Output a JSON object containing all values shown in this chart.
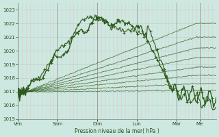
{
  "xlabel": "Pression niveau de la mer( hPa )",
  "bg_color": "#cce8e0",
  "grid_minor_color": "#e8c8c8",
  "grid_major_color": "#c0b0b0",
  "line_color": "#2d5a1b",
  "ylim": [
    1015,
    1023.5
  ],
  "yticks": [
    1015,
    1016,
    1017,
    1018,
    1019,
    1020,
    1021,
    1022,
    1023
  ],
  "day_labels": [
    "Ven",
    "Sam",
    "Dim",
    "Lun",
    "Mar",
    "Me"
  ],
  "day_positions": [
    0,
    0.2,
    0.4,
    0.6,
    0.8,
    0.9167
  ],
  "total_points": 240
}
